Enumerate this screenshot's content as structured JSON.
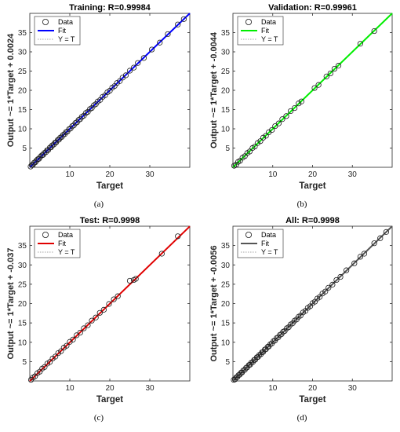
{
  "chart_data": [
    {
      "type": "scatter",
      "panel_label": "(a)",
      "title": "Training: R=0.99984",
      "xlabel": "Target",
      "ylabel": "Output ~= 1*Target + 0.0024",
      "xlim": [
        0,
        40
      ],
      "ylim": [
        0,
        40
      ],
      "xticks": [
        10,
        20,
        30
      ],
      "yticks": [
        5,
        10,
        15,
        20,
        25,
        30,
        35
      ],
      "legend": [
        "Data",
        "Fit",
        "Y = T"
      ],
      "legend_position": "top-left",
      "fit_color": "#0000ff",
      "fit": {
        "slope": 1,
        "intercept": 0.0024
      },
      "series": [
        {
          "name": "Data",
          "x": [
            0.2,
            0.5,
            0.8,
            1.1,
            1.4,
            1.7,
            2.0,
            2.3,
            2.6,
            3.0,
            3.3,
            3.6,
            4.0,
            4.3,
            4.6,
            5.0,
            5.3,
            5.6,
            6.0,
            6.3,
            6.6,
            7.0,
            7.3,
            7.6,
            8.0,
            8.3,
            8.7,
            9.0,
            9.4,
            9.8,
            10.2,
            10.6,
            11.0,
            11.4,
            11.8,
            12.2,
            12.6,
            13.0,
            13.5,
            14.0,
            14.5,
            15.0,
            15.5,
            16.0,
            16.5,
            17.0,
            17.6,
            18.2,
            18.8,
            19.4,
            20.0,
            20.6,
            21.2,
            21.8,
            22.5,
            23.2,
            24.0,
            25.0,
            26.0,
            27.0,
            28.5,
            30.5,
            32.5,
            34.5,
            37.0,
            38.5
          ],
          "y": [
            0.2,
            0.6,
            0.7,
            1.2,
            1.3,
            1.8,
            2.1,
            2.2,
            2.7,
            3.1,
            3.2,
            3.7,
            3.9,
            4.4,
            4.5,
            5.1,
            5.2,
            5.7,
            5.9,
            6.4,
            6.5,
            7.1,
            7.2,
            7.7,
            7.9,
            8.4,
            8.6,
            9.1,
            9.3,
            9.9,
            10.1,
            10.7,
            10.9,
            11.5,
            11.7,
            12.3,
            12.5,
            13.1,
            13.4,
            14.1,
            14.4,
            15.1,
            15.4,
            16.1,
            16.4,
            17.1,
            17.5,
            18.3,
            18.7,
            19.5,
            19.9,
            20.7,
            21.1,
            21.9,
            22.4,
            23.3,
            23.9,
            25.1,
            25.9,
            27.1,
            28.4,
            30.6,
            32.4,
            34.6,
            37.1,
            38.5
          ]
        }
      ]
    },
    {
      "type": "scatter",
      "panel_label": "(b)",
      "title": "Validation: R=0.99961",
      "xlabel": "Target",
      "ylabel": "Output ~= 1*Target + -0.0044",
      "xlim": [
        0,
        40
      ],
      "ylim": [
        0,
        40
      ],
      "xticks": [
        10,
        20,
        30
      ],
      "yticks": [
        5,
        10,
        15,
        20,
        25,
        30,
        35
      ],
      "legend": [
        "Data",
        "Fit",
        "Y = T"
      ],
      "legend_position": "top-left",
      "fit_color": "#00ee00",
      "fit": {
        "slope": 1,
        "intercept": -0.0044
      },
      "series": [
        {
          "name": "Data",
          "x": [
            0.3,
            0.8,
            1.3,
            1.8,
            2.4,
            3.0,
            3.6,
            4.2,
            4.9,
            5.5,
            6.2,
            6.9,
            7.6,
            8.3,
            9.0,
            9.8,
            10.6,
            11.5,
            12.4,
            13.4,
            14.5,
            15.5,
            16.5,
            17.2,
            20.5,
            21.5,
            23.5,
            24.5,
            25.5,
            26.5,
            32.0,
            35.5
          ],
          "y": [
            0.4,
            0.7,
            1.4,
            1.7,
            2.5,
            2.9,
            3.7,
            4.1,
            5.0,
            5.4,
            6.3,
            6.8,
            7.7,
            8.2,
            9.1,
            9.7,
            10.7,
            11.4,
            12.5,
            13.3,
            14.6,
            15.4,
            16.6,
            17.1,
            20.6,
            21.4,
            23.6,
            24.4,
            25.6,
            26.4,
            32.1,
            35.4
          ]
        }
      ]
    },
    {
      "type": "scatter",
      "panel_label": "(c)",
      "title": "Test: R=0.9998",
      "xlabel": "Target",
      "ylabel": "Output ~= 1*Target + -0.037",
      "xlim": [
        0,
        40
      ],
      "ylim": [
        0,
        40
      ],
      "xticks": [
        10,
        20,
        30
      ],
      "yticks": [
        5,
        10,
        15,
        20,
        25,
        30,
        35
      ],
      "legend": [
        "Data",
        "Fit",
        "Y = T"
      ],
      "legend_position": "top-left",
      "fit_color": "#e00000",
      "fit": {
        "slope": 1,
        "intercept": -0.037
      },
      "series": [
        {
          "name": "Data",
          "x": [
            0.3,
            0.8,
            1.3,
            1.9,
            2.5,
            3.1,
            3.7,
            4.4,
            5.0,
            5.7,
            6.4,
            7.1,
            7.8,
            8.5,
            9.2,
            10.0,
            10.8,
            11.7,
            12.6,
            13.5,
            14.5,
            15.5,
            16.5,
            17.5,
            18.5,
            19.8,
            21.0,
            22.0,
            25.0,
            26.0,
            26.5,
            33.0,
            37.0
          ],
          "y": [
            0.3,
            0.9,
            1.2,
            2.0,
            2.4,
            3.2,
            3.6,
            4.5,
            4.9,
            5.8,
            6.3,
            7.2,
            7.7,
            8.6,
            9.1,
            10.1,
            10.7,
            11.8,
            12.5,
            13.6,
            14.4,
            15.6,
            16.4,
            17.6,
            18.4,
            19.9,
            21.1,
            21.9,
            25.9,
            26.1,
            26.4,
            32.9,
            37.4
          ]
        }
      ]
    },
    {
      "type": "scatter",
      "panel_label": "(d)",
      "title": "All: R=0.9998",
      "xlabel": "Target",
      "ylabel": "Output ~= 1*Target + -0.0056",
      "xlim": [
        0,
        40
      ],
      "ylim": [
        0,
        40
      ],
      "xticks": [
        10,
        20,
        30
      ],
      "yticks": [
        5,
        10,
        15,
        20,
        25,
        30,
        35
      ],
      "legend": [
        "Data",
        "Fit",
        "Y = T"
      ],
      "legend_position": "top-left",
      "fit_color": "#555555",
      "fit": {
        "slope": 1,
        "intercept": -0.0056
      },
      "series": [
        {
          "name": "Data",
          "x": [
            0.2,
            0.5,
            0.8,
            1.1,
            1.4,
            1.7,
            2.0,
            2.3,
            2.6,
            3.0,
            3.3,
            3.6,
            4.0,
            4.3,
            4.6,
            5.0,
            5.3,
            5.6,
            6.0,
            6.3,
            6.6,
            7.0,
            7.3,
            7.6,
            8.0,
            8.3,
            8.7,
            9.0,
            9.4,
            9.8,
            10.2,
            10.6,
            11.0,
            11.4,
            11.8,
            12.2,
            12.6,
            13.0,
            13.5,
            14.0,
            14.5,
            15.0,
            15.5,
            16.0,
            16.5,
            17.0,
            17.6,
            18.2,
            18.8,
            19.4,
            20.0,
            20.6,
            21.2,
            21.8,
            22.5,
            23.2,
            24.0,
            25.0,
            26.0,
            27.0,
            28.5,
            30.5,
            32.0,
            33.0,
            35.5,
            37.0,
            38.5
          ],
          "y": [
            0.3,
            0.4,
            0.9,
            1.0,
            1.5,
            1.6,
            2.1,
            2.2,
            2.7,
            2.9,
            3.4,
            3.5,
            4.1,
            4.2,
            4.7,
            4.9,
            5.4,
            5.5,
            6.1,
            6.2,
            6.7,
            6.9,
            7.4,
            7.5,
            8.1,
            8.2,
            8.8,
            8.9,
            9.5,
            9.7,
            10.3,
            10.5,
            11.1,
            11.3,
            11.9,
            12.1,
            12.7,
            12.9,
            13.6,
            13.9,
            14.6,
            14.9,
            15.6,
            15.9,
            16.6,
            16.9,
            17.7,
            18.1,
            18.9,
            19.3,
            20.1,
            20.5,
            21.3,
            21.7,
            22.6,
            23.1,
            24.1,
            24.9,
            26.1,
            26.9,
            28.6,
            30.4,
            32.1,
            32.9,
            35.6,
            36.9,
            38.5
          ]
        }
      ]
    }
  ]
}
